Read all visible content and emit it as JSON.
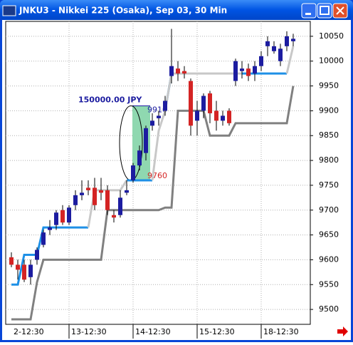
{
  "window_title": "JNKU3 - Nikkei 225 (Osaka), Sep 03, 30 Min",
  "chart_data": {
    "type": "candlestick",
    "categories": [
      "2-12:30",
      null,
      null,
      null,
      null,
      null,
      null,
      null,
      null,
      "13-12:30",
      null,
      null,
      null,
      null,
      null,
      null,
      null,
      null,
      null,
      "14-12:30",
      null,
      null,
      null,
      null,
      null,
      null,
      null,
      null,
      null,
      "15-12:30",
      null,
      null,
      null,
      null,
      null,
      null,
      null,
      null,
      null,
      "18-12:30",
      null,
      null,
      null,
      null,
      null
    ],
    "open": [
      9605,
      9590,
      9590,
      9565,
      9600,
      9630,
      9660,
      9670,
      9700,
      9675,
      9710,
      9730,
      9745,
      9745,
      9740,
      9740,
      9690,
      9690,
      9735,
      9760,
      9790,
      9815,
      9870,
      9885,
      9900,
      9970,
      9985,
      9980,
      9960,
      9880,
      9900,
      9935,
      9900,
      9880,
      9900,
      9960,
      9980,
      9985,
      9975,
      9990,
      10030,
      10020,
      10000,
      10030,
      10040
    ],
    "high": [
      9615,
      9600,
      9600,
      9600,
      9625,
      9660,
      9680,
      9700,
      9710,
      9710,
      9740,
      9760,
      9760,
      9765,
      9765,
      9750,
      9700,
      9740,
      9760,
      9795,
      9830,
      9870,
      9895,
      9900,
      9930,
      10065,
      10000,
      9990,
      9965,
      9920,
      9935,
      9940,
      9920,
      9900,
      9905,
      10005,
      10000,
      9995,
      10000,
      10020,
      10050,
      10040,
      10035,
      10060,
      10055
    ],
    "low": [
      9585,
      9560,
      9555,
      9550,
      9590,
      9625,
      9650,
      9660,
      9670,
      9670,
      9700,
      9720,
      9730,
      9700,
      9720,
      9690,
      9675,
      9685,
      9730,
      9755,
      9780,
      9800,
      9860,
      9870,
      9890,
      9955,
      9960,
      9965,
      9850,
      9850,
      9885,
      9875,
      9860,
      9870,
      9870,
      9950,
      9965,
      9960,
      9960,
      9980,
      10010,
      10015,
      9990,
      10020,
      10030
    ],
    "close": [
      9590,
      9580,
      9560,
      9590,
      9620,
      9655,
      9665,
      9695,
      9675,
      9705,
      9730,
      9735,
      9740,
      9710,
      9735,
      9700,
      9685,
      9725,
      9740,
      9790,
      9820,
      9865,
      9880,
      9890,
      9920,
      9990,
      9975,
      9975,
      9870,
      9900,
      9930,
      9895,
      9880,
      9890,
      9875,
      10000,
      9985,
      9970,
      9990,
      10010,
      10040,
      10030,
      10025,
      10050,
      10045
    ],
    "up_color": "#1c1ca0",
    "down_color": "#d42424",
    "series": [
      {
        "color": "#1e90e6",
        "values": [
          9550,
          9550,
          9610,
          9610,
          9610,
          9665,
          9665,
          9665,
          9665,
          9665,
          9665,
          9665,
          9665,
          null,
          null,
          null,
          null,
          null,
          9760,
          9760,
          9760,
          9760,
          9760,
          null,
          9900,
          9975,
          null,
          null,
          null,
          null,
          null,
          null,
          null,
          null,
          null,
          null,
          9975,
          9975,
          9975,
          9975,
          9975,
          9975,
          9975,
          9975,
          null
        ]
      },
      {
        "color": "#c8c8c8",
        "values": [
          null,
          null,
          null,
          null,
          null,
          null,
          null,
          null,
          null,
          null,
          null,
          null,
          9665,
          9740,
          9740,
          9740,
          9740,
          9740,
          9760,
          null,
          null,
          null,
          9760,
          9860,
          9900,
          9975,
          9975,
          9975,
          9975,
          9975,
          9975,
          9975,
          9975,
          9975,
          9975,
          9975,
          9975,
          null,
          null,
          null,
          null,
          null,
          null,
          9975,
          10030
        ]
      },
      {
        "color": "#808080",
        "values": [
          9480,
          9480,
          9480,
          9480,
          9555,
          9600,
          9600,
          9600,
          9600,
          9600,
          9600,
          9600,
          9600,
          9600,
          9600,
          9700,
          9700,
          9700,
          9700,
          9700,
          9700,
          9700,
          9700,
          9700,
          9705,
          9705,
          9900,
          9900,
          9900,
          9900,
          9900,
          9850,
          9850,
          9850,
          9850,
          9875,
          9875,
          9875,
          9875,
          9875,
          9875,
          9875,
          9875,
          9875,
          9950
        ]
      }
    ],
    "annotation": {
      "text": "150000.00 JPY",
      "high": 9910,
      "low": 9760,
      "fill": "#8fd8b0"
    },
    "ylim": [
      9470,
      10080
    ],
    "yticks": [
      9500,
      9550,
      9600,
      9650,
      9700,
      9750,
      9800,
      9850,
      9900,
      9950,
      10000,
      10050
    ],
    "grid": true
  }
}
